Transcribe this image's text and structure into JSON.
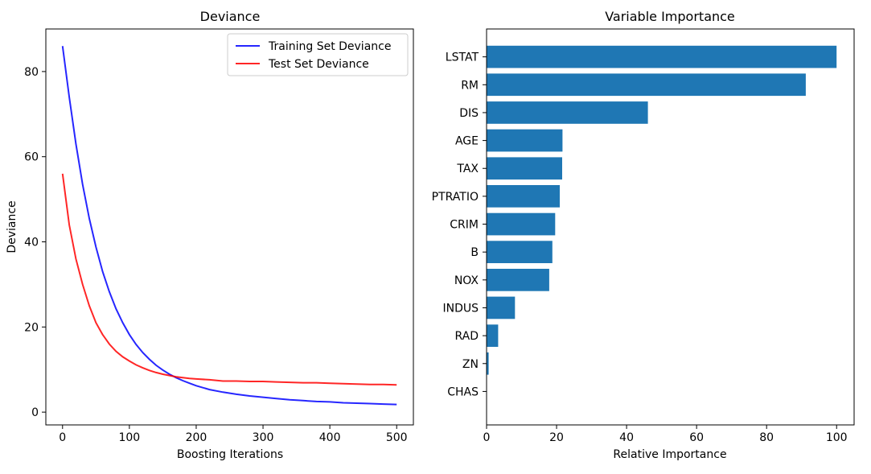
{
  "chart_data": [
    {
      "type": "line",
      "title": "Deviance",
      "xlabel": "Boosting Iterations",
      "ylabel": "Deviance",
      "xlim": [
        -25,
        525
      ],
      "ylim": [
        -3,
        90
      ],
      "xticks": [
        0,
        100,
        200,
        300,
        400,
        500
      ],
      "yticks": [
        0,
        20,
        40,
        60,
        80
      ],
      "grid": false,
      "legend_position": "top-right",
      "series": [
        {
          "name": "Training Set Deviance",
          "color": "#0000ff",
          "x": [
            0,
            10,
            20,
            30,
            40,
            50,
            60,
            70,
            80,
            90,
            100,
            110,
            120,
            130,
            140,
            150,
            160,
            170,
            180,
            190,
            200,
            220,
            240,
            260,
            280,
            300,
            320,
            340,
            360,
            380,
            400,
            420,
            440,
            460,
            480,
            500
          ],
          "y": [
            86,
            74,
            63,
            53.5,
            45.5,
            38.8,
            33,
            28.3,
            24.3,
            21,
            18.2,
            15.9,
            14,
            12.4,
            11,
            9.9,
            8.9,
            8.1,
            7.4,
            6.8,
            6.2,
            5.3,
            4.7,
            4.2,
            3.8,
            3.5,
            3.2,
            2.9,
            2.7,
            2.5,
            2.4,
            2.2,
            2.1,
            2,
            1.9,
            1.8
          ]
        },
        {
          "name": "Test Set Deviance",
          "color": "#ff0000",
          "x": [
            0,
            10,
            20,
            30,
            40,
            50,
            60,
            70,
            80,
            90,
            100,
            110,
            120,
            130,
            140,
            150,
            160,
            170,
            180,
            190,
            200,
            220,
            240,
            260,
            280,
            300,
            320,
            340,
            360,
            380,
            400,
            420,
            440,
            460,
            480,
            500
          ],
          "y": [
            56,
            44,
            36,
            30,
            25,
            21,
            18.2,
            16,
            14.3,
            13,
            12,
            11.1,
            10.4,
            9.8,
            9.3,
            8.9,
            8.6,
            8.3,
            8.1,
            7.9,
            7.8,
            7.6,
            7.3,
            7.3,
            7.2,
            7.2,
            7.1,
            7,
            6.9,
            6.9,
            6.8,
            6.7,
            6.6,
            6.5,
            6.5,
            6.4
          ]
        }
      ]
    },
    {
      "type": "bar",
      "orientation": "horizontal",
      "title": "Variable Importance",
      "xlabel": "Relative Importance",
      "ylabel": "",
      "xlim": [
        0,
        105
      ],
      "xticks": [
        0,
        20,
        40,
        60,
        80,
        100
      ],
      "grid": false,
      "bar_color": "#1f77b4",
      "categories": [
        "LSTAT",
        "RM",
        "DIS",
        "AGE",
        "TAX",
        "PTRATIO",
        "CRIM",
        "B",
        "NOX",
        "INDUS",
        "RAD",
        "ZN",
        "CHAS"
      ],
      "values": [
        100,
        91.2,
        46.1,
        21.7,
        21.6,
        20.9,
        19.6,
        18.8,
        17.9,
        8.1,
        3.3,
        0.6,
        0
      ]
    }
  ]
}
